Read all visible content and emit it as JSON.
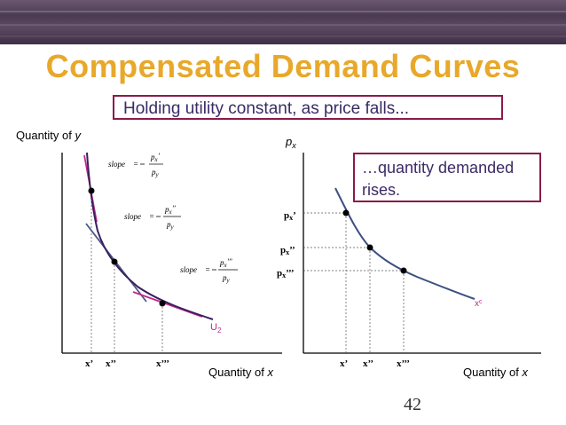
{
  "slide": {
    "title": "Compensated Demand Curves",
    "callout_top": "Holding utility constant, as price falls...",
    "callout_right": "…quantity demanded rises.",
    "page_number": "42"
  },
  "left_graph": {
    "y_axis_label_prefix": "Quantity of ",
    "y_axis_label_var": "y",
    "x_axis_label_prefix": "Quantity of ",
    "x_axis_label_var": "x",
    "curve_label": "U",
    "curve_label_sub": "2",
    "x_ticks": [
      "x’",
      "x’’",
      "x’’’"
    ],
    "slopes": [
      {
        "lhs": "slope",
        "num": "p",
        "num_sub": "x",
        "num_prime": "’",
        "den": "p",
        "den_sub": "y"
      },
      {
        "lhs": "slope",
        "num": "p",
        "num_sub": "x",
        "num_prime": "’’",
        "den": "p",
        "den_sub": "y"
      },
      {
        "lhs": "slope",
        "num": "p",
        "num_sub": "x",
        "num_prime": "’’’",
        "den": "p",
        "den_sub": "y"
      }
    ]
  },
  "right_graph": {
    "y_axis_label": "p",
    "y_axis_label_sub": "x",
    "x_axis_label_prefix": "Quantity of ",
    "x_axis_label_var": "x",
    "curve_label": "x",
    "curve_label_sup": "c",
    "x_ticks": [
      "x’",
      "x’’",
      "x’’’"
    ],
    "y_ticks": [
      {
        "main": "p",
        "sub": "x",
        "prime": "’"
      },
      {
        "main": "p",
        "sub": "x",
        "prime": "’’"
      },
      {
        "main": "p",
        "sub": "x",
        "prime": "’’’"
      }
    ]
  },
  "colors": {
    "title": "#e8a82a",
    "callout_border": "#8b1a4a",
    "callout_text": "#3b2a66",
    "indifference_curve": "#3a1f5c",
    "tangent_lines": "#c2268e",
    "middle_tangent": "#4a5a8a",
    "demand_curve": "#3d4f80"
  }
}
